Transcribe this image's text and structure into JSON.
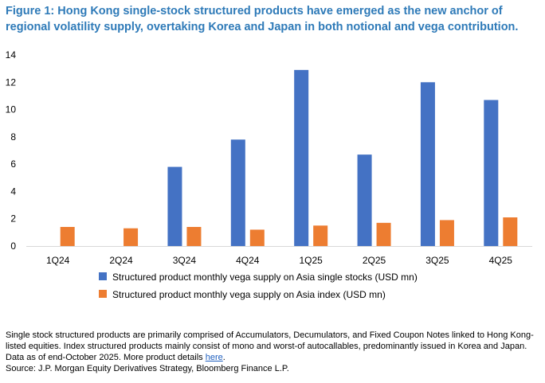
{
  "title": "Figure 1: Hong Kong single-stock structured products have emerged as the new anchor of regional volatility supply, overtaking Korea and Japan in both notional and vega contribution.",
  "chart_data": {
    "type": "bar",
    "categories": [
      "1Q24",
      "2Q24",
      "3Q24",
      "4Q24",
      "1Q25",
      "2Q25",
      "3Q25",
      "4Q25"
    ],
    "series": [
      {
        "name": "Structured product monthly vega supply on Asia single stocks (USD mn)",
        "color": "#4472c4",
        "values": [
          null,
          null,
          5.8,
          7.8,
          12.9,
          6.7,
          12.0,
          10.7
        ]
      },
      {
        "name": "Structured product monthly vega supply on Asia index (USD mn)",
        "color": "#ed7d31",
        "values": [
          1.4,
          1.3,
          1.4,
          1.2,
          1.5,
          1.7,
          1.9,
          2.1
        ]
      }
    ],
    "yticks": [
      "0",
      "2",
      "4",
      "6",
      "8",
      "10",
      "12",
      "14"
    ],
    "ylim": [
      0,
      14
    ],
    "grid": false,
    "legend_position": "bottom"
  },
  "notes": {
    "line1": "Single stock structured products are primarily comprised of Accumulators, Decumulators, and Fixed Coupon Notes linked to Hong Kong-listed equities. Index structured products mainly consist of mono and worst-of autocallables, predominantly issued in Korea and Japan.",
    "line2_prefix": "Data as of end-October 2025. More product details ",
    "link_text": "here",
    "line2_suffix": ".",
    "source": "Source: J.P. Morgan Equity Derivatives Strategy, Bloomberg Finance L.P."
  }
}
